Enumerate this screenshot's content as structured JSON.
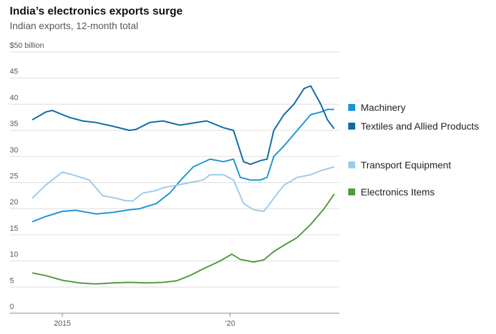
{
  "chart_data": {
    "type": "line",
    "title": "India’s electronics exports surge",
    "subtitle": "Indian exports, 12-month total",
    "xlim": [
      2013.43,
      2023.25
    ],
    "xticks": [
      2015,
      {
        "value": 2020,
        "label": "’20"
      }
    ],
    "ylim": [
      0,
      50
    ],
    "yticks": [
      0,
      5,
      10,
      15,
      20,
      25,
      30,
      35,
      40,
      45,
      {
        "value": 50,
        "label": "$50 billion"
      }
    ],
    "grid": true,
    "series": [
      {
        "name": "Machinery",
        "color": "#1b95d3",
        "x": [
          2014.1,
          2014.5,
          2015.0,
          2015.4,
          2016.0,
          2016.5,
          2017.0,
          2017.3,
          2017.8,
          2018.2,
          2018.6,
          2018.9,
          2019.4,
          2019.8,
          2020.1,
          2020.3,
          2020.6,
          2020.9,
          2021.1,
          2021.3,
          2021.6,
          2022.0,
          2022.4,
          2022.7,
          2022.9,
          2023.1
        ],
        "values": [
          17.5,
          18.5,
          19.5,
          19.7,
          19.0,
          19.3,
          19.8,
          20.0,
          21.0,
          23.0,
          26.0,
          28.0,
          29.5,
          29.0,
          29.5,
          26.0,
          25.5,
          25.5,
          26.0,
          30.0,
          32.0,
          35.0,
          38.0,
          38.5,
          39.0,
          39.0
        ]
      },
      {
        "name": "Textiles and Allied Products",
        "color": "#0b6ba3",
        "x": [
          2014.1,
          2014.5,
          2014.7,
          2015.2,
          2015.6,
          2016.0,
          2016.5,
          2017.0,
          2017.2,
          2017.6,
          2018.0,
          2018.5,
          2019.0,
          2019.3,
          2019.8,
          2020.1,
          2020.4,
          2020.6,
          2020.9,
          2021.1,
          2021.3,
          2021.6,
          2021.9,
          2022.2,
          2022.4,
          2022.7,
          2022.9,
          2023.1
        ],
        "values": [
          37.0,
          38.5,
          38.8,
          37.5,
          36.8,
          36.5,
          35.8,
          35.0,
          35.2,
          36.5,
          36.8,
          36.0,
          36.5,
          36.8,
          35.5,
          35.0,
          29.0,
          28.5,
          29.2,
          29.5,
          35.0,
          38.0,
          40.0,
          43.0,
          43.5,
          40.0,
          37.0,
          35.3
        ]
      },
      {
        "name": "Transport Equipment",
        "color": "#9ccbea",
        "x": [
          2014.1,
          2014.5,
          2014.7,
          2015.0,
          2015.3,
          2015.8,
          2016.2,
          2016.6,
          2016.9,
          2017.1,
          2017.4,
          2017.8,
          2018.0,
          2018.4,
          2018.8,
          2019.2,
          2019.4,
          2019.8,
          2020.1,
          2020.4,
          2020.7,
          2021.0,
          2021.3,
          2021.6,
          2022.0,
          2022.4,
          2022.7,
          2023.1
        ],
        "values": [
          22.0,
          24.5,
          25.5,
          27.0,
          26.5,
          25.5,
          22.5,
          22.0,
          21.5,
          21.5,
          23.0,
          23.5,
          24.0,
          24.5,
          25.0,
          25.5,
          26.5,
          26.5,
          25.5,
          21.0,
          19.8,
          19.5,
          22.0,
          24.5,
          26.0,
          26.5,
          27.3,
          28.0
        ]
      },
      {
        "name": "Electronics Items",
        "color": "#4f9a3d",
        "x": [
          2014.1,
          2014.5,
          2015.0,
          2015.5,
          2016.0,
          2016.5,
          2017.0,
          2017.5,
          2018.0,
          2018.4,
          2018.8,
          2019.2,
          2019.7,
          2020.05,
          2020.3,
          2020.7,
          2021.0,
          2021.3,
          2021.6,
          2022.0,
          2022.4,
          2022.8,
          2023.1
        ],
        "values": [
          7.7,
          7.2,
          6.3,
          5.8,
          5.6,
          5.8,
          5.9,
          5.8,
          5.9,
          6.2,
          7.2,
          8.5,
          10.0,
          11.3,
          10.3,
          9.8,
          10.2,
          11.8,
          13.0,
          14.5,
          17.0,
          20.0,
          22.8
        ]
      }
    ]
  }
}
